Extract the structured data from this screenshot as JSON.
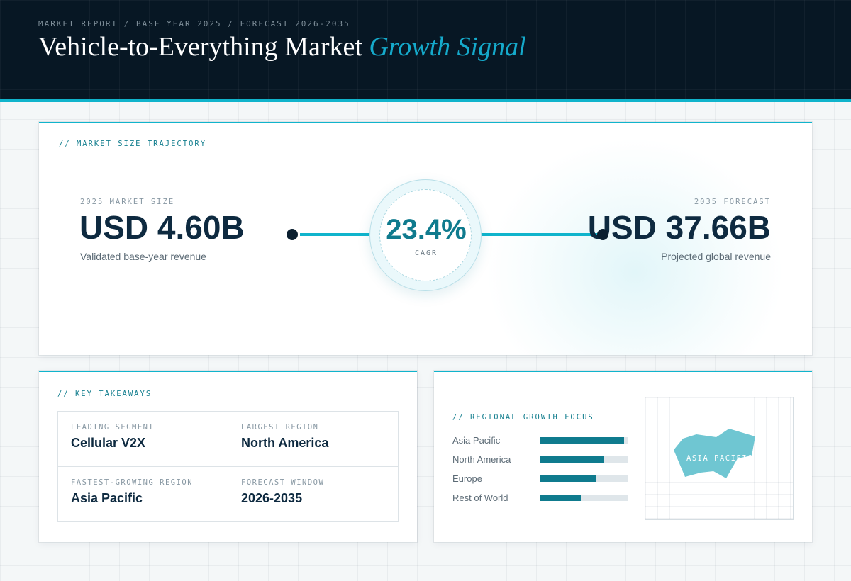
{
  "header": {
    "eyebrow": "MARKET REPORT / BASE YEAR 2025 / FORECAST 2026-2035",
    "title_main": "Vehicle-to-Everything Market",
    "title_accent": "Growth Signal"
  },
  "trajectory": {
    "label": "// MARKET SIZE TRAJECTORY",
    "base": {
      "caption": "2025 MARKET SIZE",
      "value": "USD 4.60B",
      "note": "Validated base-year revenue"
    },
    "cagr": {
      "value": "23.4%",
      "label": "CAGR"
    },
    "forecast": {
      "caption": "2035 FORECAST",
      "value": "USD 37.66B",
      "note": "Projected global revenue"
    }
  },
  "takeaways": {
    "label": "// KEY TAKEAWAYS",
    "items": [
      {
        "label": "LEADING SEGMENT",
        "value": "Cellular V2X"
      },
      {
        "label": "LARGEST REGION",
        "value": "North America"
      },
      {
        "label": "FASTEST-GROWING REGION",
        "value": "Asia Pacific"
      },
      {
        "label": "FORECAST WINDOW",
        "value": "2026-2035"
      }
    ]
  },
  "regional": {
    "label": "// REGIONAL GROWTH FOCUS",
    "bars": [
      {
        "name": "Asia Pacific",
        "level": 0.96
      },
      {
        "name": "North America",
        "level": 0.72
      },
      {
        "name": "Europe",
        "level": 0.64
      },
      {
        "name": "Rest of World",
        "level": 0.46
      }
    ],
    "map_label": "ASIA PACIFIC",
    "highlight_color": "#6fc6d2"
  },
  "colors": {
    "accent": "#10b4cc",
    "teal": "#0f7b8e",
    "navy": "#071724"
  }
}
